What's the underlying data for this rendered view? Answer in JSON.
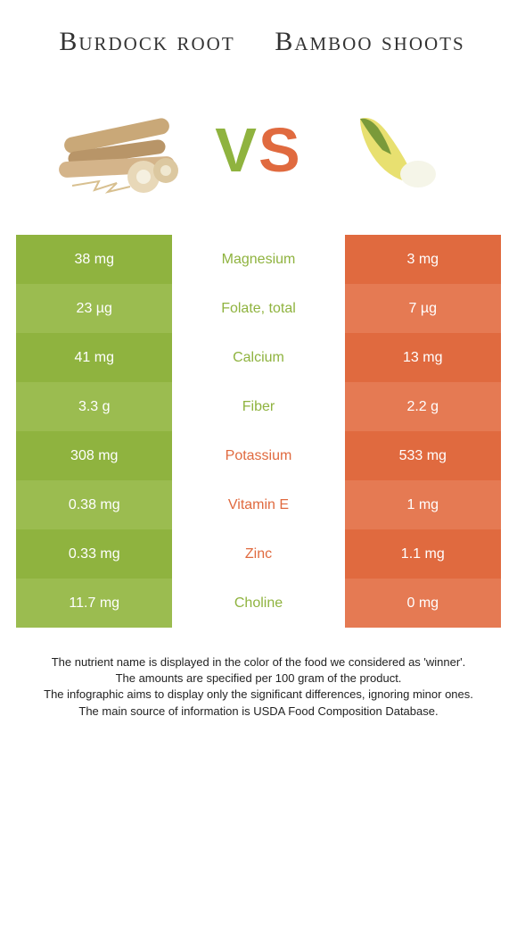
{
  "colors": {
    "left_main": "#8fb33f",
    "left_alt": "#9bbc50",
    "right_main": "#e06a3f",
    "right_alt": "#e57a53",
    "text_left_win": "#8fb33f",
    "text_right_win": "#e06a3f"
  },
  "foods": {
    "left": {
      "title": "Burdock root"
    },
    "right": {
      "title": "Bamboo shoots"
    }
  },
  "vs": {
    "v": "V",
    "s": "S"
  },
  "rows": [
    {
      "left": "38 mg",
      "label": "Magnesium",
      "right": "3 mg",
      "winner": "left"
    },
    {
      "left": "23 µg",
      "label": "Folate, total",
      "right": "7 µg",
      "winner": "left"
    },
    {
      "left": "41 mg",
      "label": "Calcium",
      "right": "13 mg",
      "winner": "left"
    },
    {
      "left": "3.3 g",
      "label": "Fiber",
      "right": "2.2 g",
      "winner": "left"
    },
    {
      "left": "308 mg",
      "label": "Potassium",
      "right": "533 mg",
      "winner": "right"
    },
    {
      "left": "0.38 mg",
      "label": "Vitamin E",
      "right": "1 mg",
      "winner": "right"
    },
    {
      "left": "0.33 mg",
      "label": "Zinc",
      "right": "1.1 mg",
      "winner": "right"
    },
    {
      "left": "11.7 mg",
      "label": "Choline",
      "right": "0 mg",
      "winner": "left"
    }
  ],
  "footnotes": [
    "The nutrient name is displayed in the color of the food we considered as 'winner'.",
    "The amounts are specified per 100 gram of the product.",
    "The infographic aims to display only the significant differences, ignoring minor ones.",
    "The main source of information is USDA Food Composition Database."
  ]
}
